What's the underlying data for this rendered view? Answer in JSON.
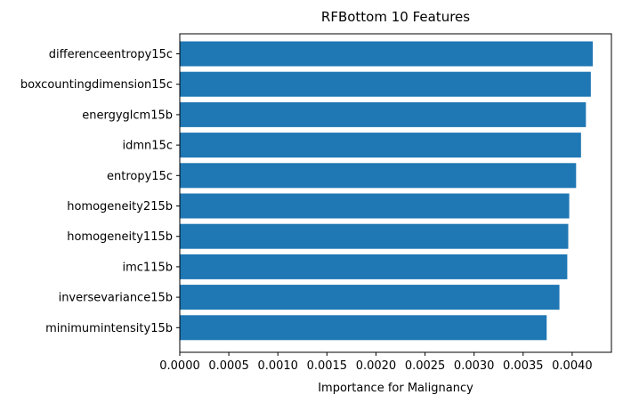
{
  "chart_data": {
    "type": "bar",
    "orientation": "horizontal",
    "title": "RFBottom 10 Features",
    "xlabel": "Importance for Malignancy",
    "ylabel": "",
    "xlim": [
      0,
      0.0044
    ],
    "xticks": [
      0,
      0.0005,
      0.001,
      0.0015,
      0.002,
      0.0025,
      0.003,
      0.0035,
      0.004
    ],
    "xtick_labels": [
      "0.0000",
      "0.0005",
      "0.0010",
      "0.0015",
      "0.0020",
      "0.0025",
      "0.0030",
      "0.0035",
      "0.0040"
    ],
    "categories": [
      "differenceentropy15c",
      "boxcountingdimension15c",
      "energyglcm15b",
      "idmn15c",
      "entropy15c",
      "homogeneity215b",
      "homogeneity115b",
      "imc115b",
      "inversevariance15b",
      "minimumintensity15b"
    ],
    "values": [
      0.00421,
      0.00419,
      0.00414,
      0.00409,
      0.00404,
      0.00397,
      0.00396,
      0.00395,
      0.00387,
      0.00374
    ],
    "bar_color": "#1f77b4",
    "grid": false,
    "legend": "none"
  }
}
